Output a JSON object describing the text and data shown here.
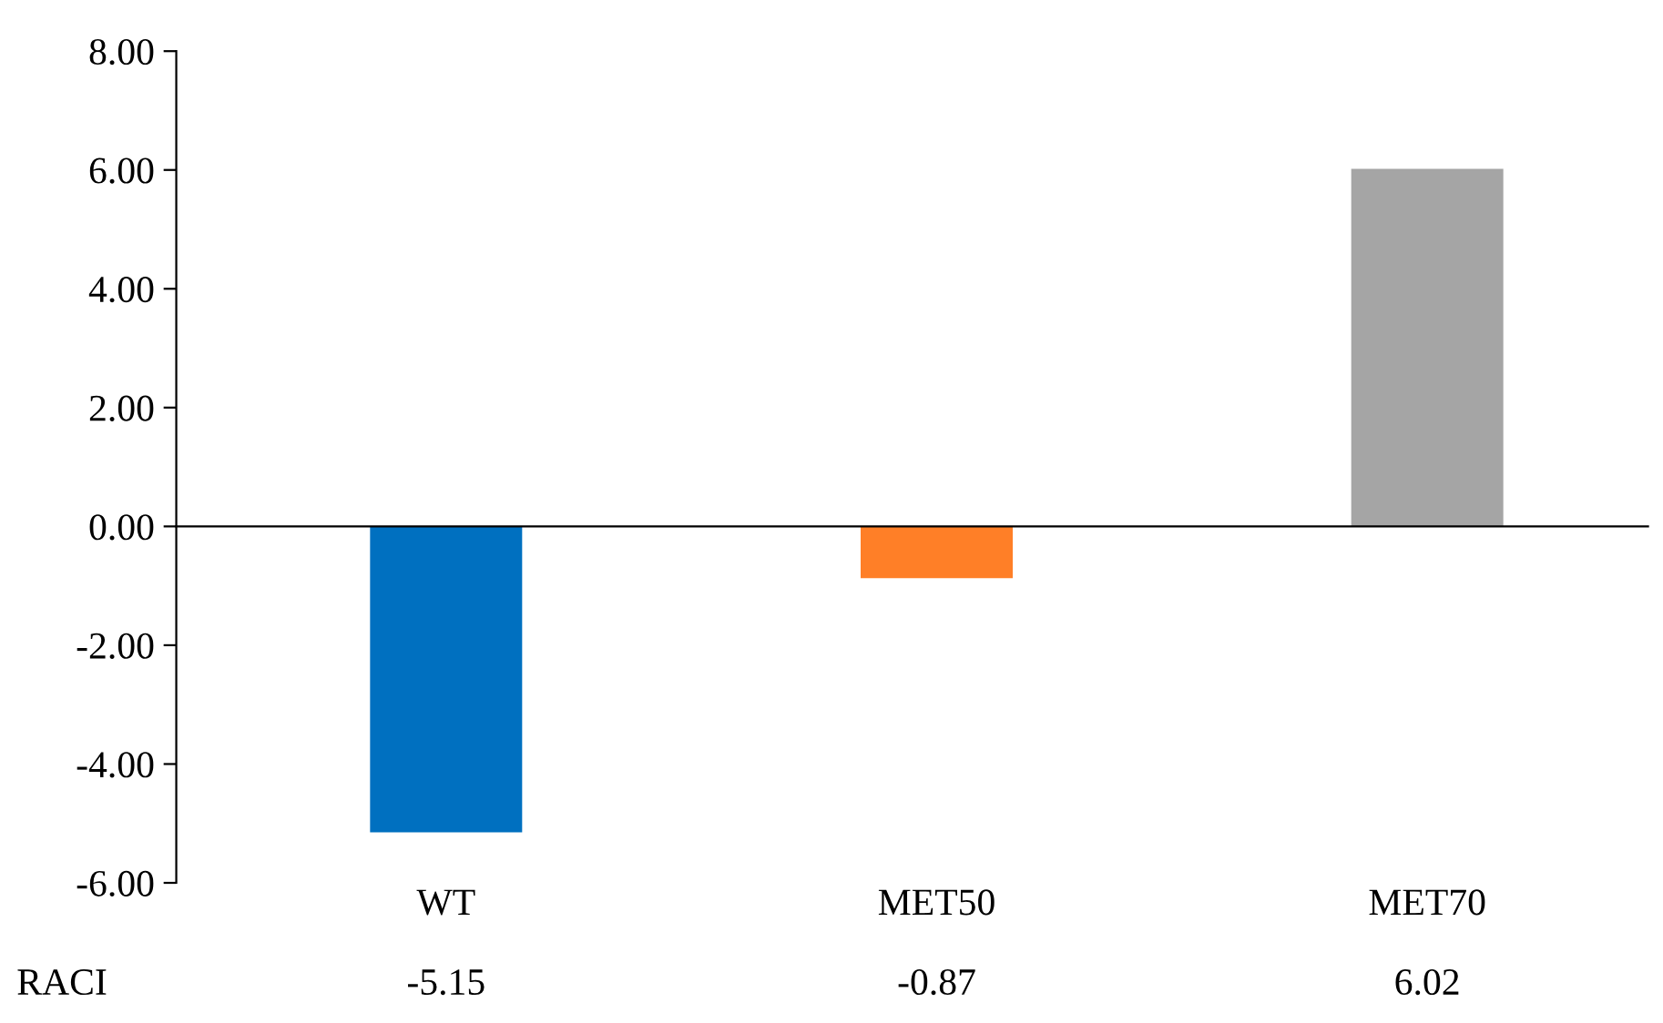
{
  "chart_data": {
    "type": "bar",
    "categories": [
      "WT",
      "MET50",
      "MET70"
    ],
    "series": [
      {
        "name": "RACI",
        "values": [
          -5.15,
          -0.87,
          6.02
        ],
        "colors": [
          "#0070c0",
          "#ff7f27",
          "#a5a5a5"
        ]
      }
    ],
    "data_labels": true,
    "ylim": [
      -6,
      8
    ],
    "yticks": [
      {
        "value": -6,
        "label": "-6.00"
      },
      {
        "value": -4,
        "label": "-4.00"
      },
      {
        "value": -2,
        "label": "-2.00"
      },
      {
        "value": 0,
        "label": "0.00"
      },
      {
        "value": 2,
        "label": "2.00"
      },
      {
        "value": 4,
        "label": "4.00"
      },
      {
        "value": 6,
        "label": "6.00"
      },
      {
        "value": 8,
        "label": "8.00"
      }
    ],
    "legend": false
  }
}
